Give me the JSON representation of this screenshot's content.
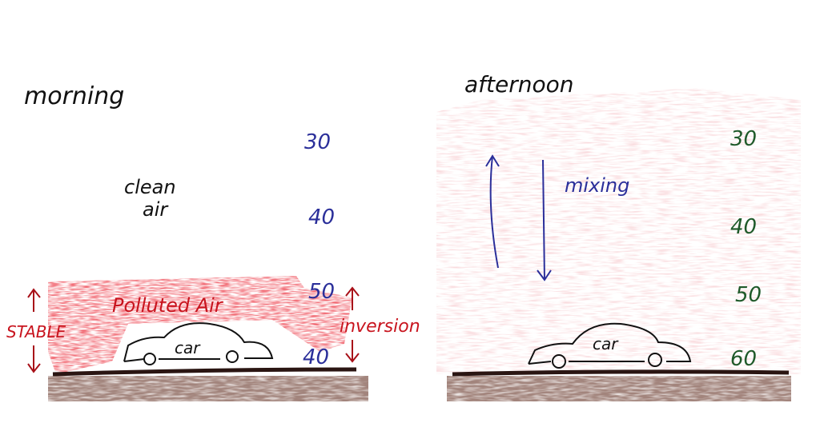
{
  "colors": {
    "pollution": "#e0242c",
    "haze": "#f2b5b8",
    "ground": "#5a3a30",
    "blue_ink": "#2b2f9a",
    "green_ink": "#1f5a2a",
    "red_ink": "#c8141e"
  },
  "morning": {
    "title": "morning",
    "clean_air": [
      "clean",
      "air"
    ],
    "temperatures": [
      "30",
      "40",
      "50",
      "40"
    ],
    "polluted_label": "Polluted Air",
    "stable_label": "STABLE",
    "inversion_label": "inversion",
    "car_label": "car"
  },
  "afternoon": {
    "title": "afternoon",
    "mixing_label": "mixing",
    "temperatures": [
      "30",
      "40",
      "50",
      "60"
    ],
    "car_label": "car"
  }
}
